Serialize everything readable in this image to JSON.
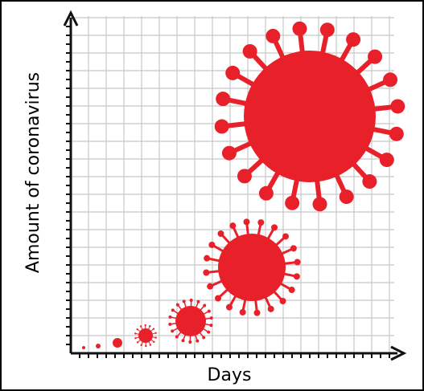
{
  "axes": {
    "x_label": "Days",
    "y_label": "Amount of coronavirus"
  }
}
